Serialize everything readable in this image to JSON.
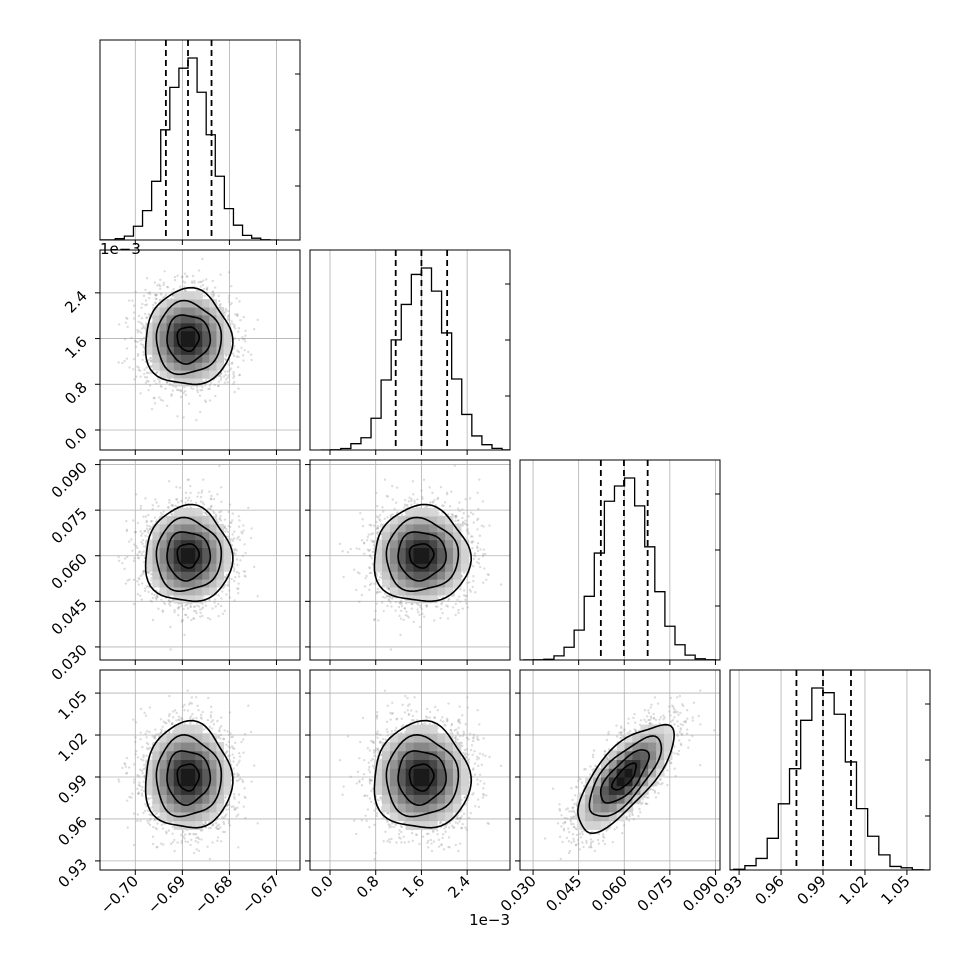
{
  "chart_data": {
    "type": "corner",
    "params": [
      {
        "range": [
          -0.7075,
          -0.665
        ],
        "ticks": [
          "−0.70",
          "−0.69",
          "−0.68",
          "−0.67"
        ],
        "tick_values": [
          -0.7,
          -0.69,
          -0.68,
          -0.67
        ],
        "scale_label": "",
        "mean": -0.6888,
        "sd": 0.0046,
        "quantiles": [
          -0.6935,
          -0.6888,
          -0.6838
        ]
      },
      {
        "range": [
          -0.00035,
          0.00315
        ],
        "ticks": [
          "0.0",
          "0.8",
          "1.6",
          "2.4"
        ],
        "tick_values": [
          0.0,
          0.0008,
          0.0016,
          0.0024
        ],
        "scale_label": "1e−3",
        "mean": 0.0016,
        "sd": 0.00042,
        "quantiles": [
          0.00115,
          0.0016,
          0.00205
        ]
      },
      {
        "range": [
          0.0257,
          0.0915
        ],
        "ticks": [
          "0.030",
          "0.045",
          "0.060",
          "0.075",
          "0.090"
        ],
        "tick_values": [
          0.03,
          0.045,
          0.06,
          0.075,
          0.09
        ],
        "scale_label": "",
        "mean": 0.0601,
        "sd": 0.0079,
        "quantiles": [
          0.0523,
          0.0599,
          0.0677
        ]
      },
      {
        "range": [
          0.9235,
          1.0665
        ],
        "ticks": [
          "0.93",
          "0.96",
          "0.99",
          "1.02",
          "1.05"
        ],
        "tick_values": [
          0.93,
          0.96,
          0.99,
          1.02,
          1.05
        ],
        "scale_label": "",
        "mean": 0.99,
        "sd": 0.019,
        "quantiles": [
          0.971,
          0.99,
          1.01
        ]
      }
    ],
    "correlation_3_4": 0.72,
    "quantiles_shown": [
      0.16,
      0.5,
      0.84
    ],
    "grid": true,
    "colors": {
      "line": "#000000",
      "points": "#9a9a9a",
      "grid": "#b0b0b0"
    }
  }
}
